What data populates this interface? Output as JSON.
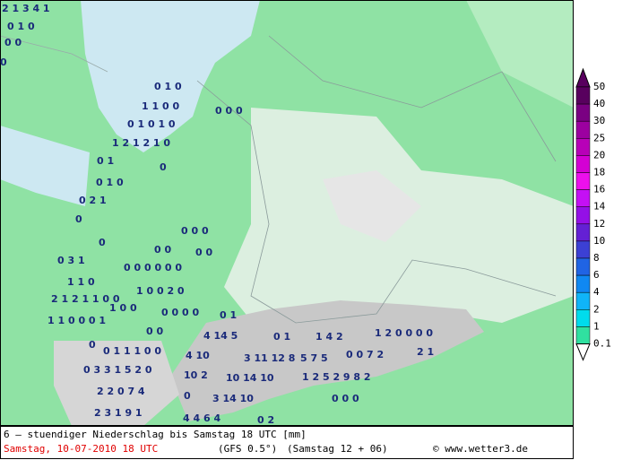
{
  "map": {
    "labels": [
      "2 1 3 4 1",
      "0 1 0",
      "0 0",
      "0",
      "0 1 0",
      "1 1 0 0",
      "0 0 0",
      "0 1 0 1 0",
      "1 2 1 2 1 0",
      "0 1",
      "0",
      "0 1 0",
      "0 2 1",
      "0",
      "0 0 0",
      "0",
      "0 0",
      "0 0",
      "0 3 1",
      "0 0 0 0 0 0",
      "1 1 0",
      "1 0 0 2 0",
      "2 1 2 1 1 0 0",
      "1 0 0",
      "0 0 0 0",
      "0 1",
      "1 1 0 0 0 1",
      "0 0",
      "4 14 5",
      "0 1",
      "1 4 2",
      "1 2 0 0 0 0",
      "0",
      "0 1 1 1 0 0",
      "4 10",
      "3 11 12 8",
      "5 7 5",
      "0 0 7 2",
      "2 1",
      "0 3 3 1 5 2 0",
      "10 2",
      "10 14 10",
      "1 2 5 2 9 8 2",
      "2 2 0 7 4",
      "0",
      "3 14 10",
      "0 0 0",
      "2 3 1 9 1",
      "4 4 6 4",
      "0 2"
    ]
  },
  "legend": {
    "levels": [
      50,
      40,
      30,
      25,
      20,
      18,
      16,
      14,
      12,
      10,
      8,
      6,
      4,
      2,
      1,
      0.1
    ],
    "colors": [
      "#58005e",
      "#7a0082",
      "#9c00a0",
      "#b800b8",
      "#d400d4",
      "#ec10ec",
      "#c410f4",
      "#9410e6",
      "#6420d4",
      "#3c40d4",
      "#2064e4",
      "#1088f2",
      "#10b4f8",
      "#00dcec",
      "#30e0a0"
    ]
  },
  "footer": {
    "title": "6 — stuendiger Niederschlag bis Samstag 18 UTC [mm]",
    "date": "Samstag, 10-07-2010  18 UTC",
    "model": "(GFS 0.5°)",
    "run": "(Samstag 12 + 06)",
    "source": "© www.wetter3.de"
  }
}
